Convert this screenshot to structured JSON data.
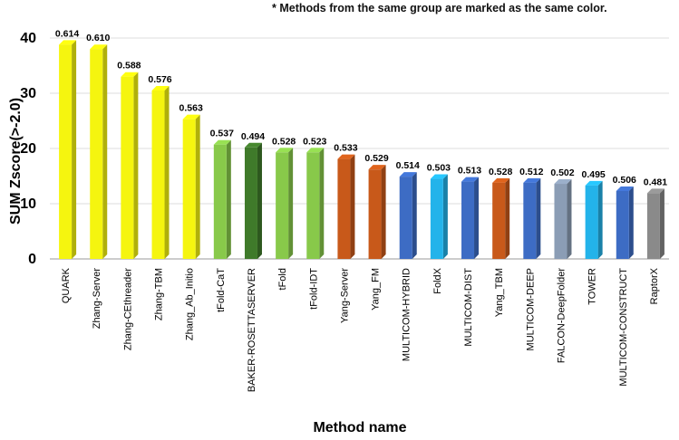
{
  "note": "* Methods from the same group are marked as the same color.",
  "chart_data": {
    "type": "bar",
    "title": "",
    "xlabel": "Method name",
    "ylabel": "SUM Zscore(>-2.0)",
    "ylim": [
      0,
      40
    ],
    "yticks": [
      0,
      10,
      20,
      30,
      40
    ],
    "grid": true,
    "categories": [
      "QUARK",
      "Zhang-Server",
      "Zhang-CEthreader",
      "Zhang-TBM",
      "Zhang_Ab_Initio",
      "tFold-CaT",
      "BAKER-ROSETTASERVER",
      "tFold",
      "tFold-IDT",
      "Yang-Server",
      "Yang_FM",
      "MULTICOM-HYBRID",
      "FoldX",
      "MULTICOM-DIST",
      "Yang_TBM",
      "MULTICOM-DEEP",
      "FALCON-DeepFolder",
      "TOWER",
      "MULTICOM-CONSTRUCT",
      "RaptorX"
    ],
    "values": [
      38.8,
      38.0,
      33.0,
      30.5,
      25.3,
      20.7,
      20.2,
      19.3,
      19.3,
      18.1,
      16.2,
      14.9,
      14.5,
      14.0,
      13.8,
      13.8,
      13.6,
      13.3,
      12.3,
      11.9
    ],
    "data_labels": [
      "0.614",
      "0.610",
      "0.588",
      "0.576",
      "0.563",
      "0.537",
      "0.494",
      "0.528",
      "0.523",
      "0.533",
      "0.529",
      "0.514",
      "0.503",
      "0.513",
      "0.528",
      "0.512",
      "0.502",
      "0.495",
      "0.506",
      "0.481"
    ],
    "colors": [
      "#f5f50f",
      "#f5f50f",
      "#f5f50f",
      "#f5f50f",
      "#f5f50f",
      "#88c94a",
      "#3f7a2a",
      "#88c94a",
      "#88c94a",
      "#c8591a",
      "#c8591a",
      "#3d6cc4",
      "#23b3ea",
      "#3d6cc4",
      "#c8591a",
      "#3d6cc4",
      "#8b9db5",
      "#23b3ea",
      "#3d6cc4",
      "#8a8a8a"
    ]
  }
}
